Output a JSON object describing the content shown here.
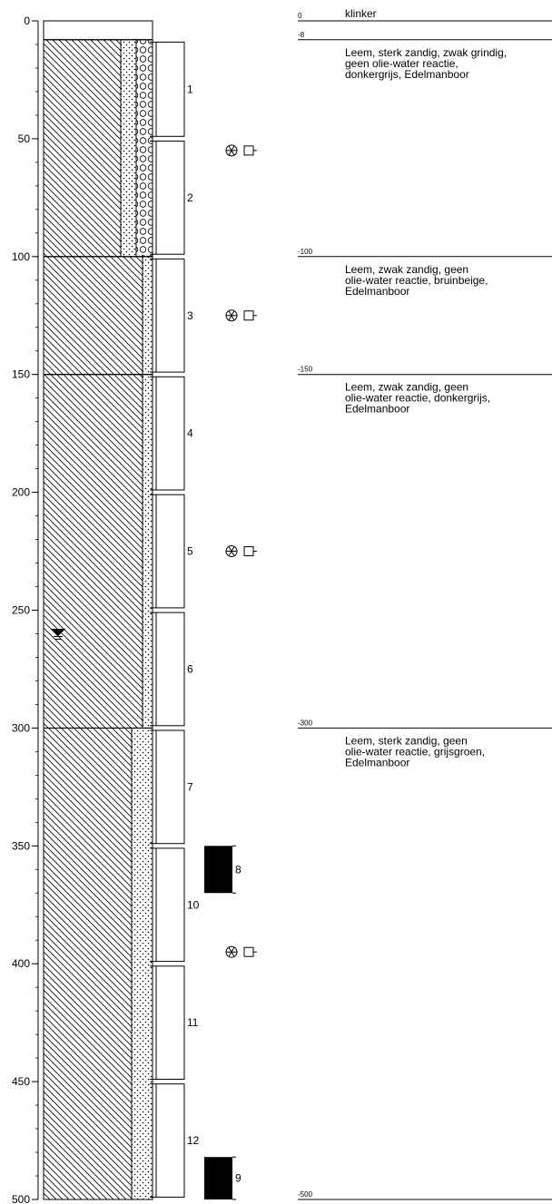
{
  "depth_axis": {
    "lim": [
      0,
      500
    ],
    "ticks": [
      0,
      50,
      100,
      150,
      200,
      250,
      300,
      350,
      400,
      450,
      500
    ],
    "minor_step": 10
  },
  "column_layers": [
    {
      "top": 0,
      "bottom": 8,
      "pattern": "none"
    },
    {
      "top": 8,
      "bottom": 100,
      "pattern": "gravel"
    },
    {
      "top": 100,
      "bottom": 150,
      "pattern": "loam-sand"
    },
    {
      "top": 150,
      "bottom": 300,
      "pattern": "loam-sand"
    },
    {
      "top": 300,
      "bottom": 500,
      "pattern": "loam-strong-sand"
    }
  ],
  "samples": [
    {
      "label": "1",
      "top": 9,
      "bottom": 49
    },
    {
      "label": "2",
      "top": 51,
      "bottom": 99
    },
    {
      "label": "3",
      "top": 101,
      "bottom": 149
    },
    {
      "label": "4",
      "top": 151,
      "bottom": 199
    },
    {
      "label": "5",
      "top": 201,
      "bottom": 249
    },
    {
      "label": "6",
      "top": 251,
      "bottom": 299
    },
    {
      "label": "7",
      "top": 301,
      "bottom": 349
    },
    {
      "label": "10",
      "top": 351,
      "bottom": 399
    },
    {
      "label": "11",
      "top": 401,
      "bottom": 449
    },
    {
      "label": "12",
      "top": 451,
      "bottom": 499
    }
  ],
  "cores": [
    {
      "label": "8",
      "top": 350,
      "bottom": 370
    },
    {
      "label": "9",
      "top": 482,
      "bottom": 500
    }
  ],
  "markers": [
    55,
    125,
    225,
    395
  ],
  "water_level": 260,
  "descriptions": [
    {
      "depth": 0,
      "text": [
        "klinker"
      ]
    },
    {
      "depth": -8,
      "text": [
        "Leem, sterk zandig, zwak grindig,",
        "geen olie-water reactie,",
        "donkergrijs, Edelmanboor"
      ]
    },
    {
      "depth": -100,
      "text": [
        "Leem, zwak zandig, geen",
        "olie-water reactie, bruinbeige,",
        "Edelmanboor"
      ]
    },
    {
      "depth": -150,
      "text": [
        "Leem, zwak zandig, geen",
        "olie-water reactie, donkergrijs,",
        "Edelmanboor"
      ]
    },
    {
      "depth": -300,
      "text": [
        "Leem, sterk zandig, geen",
        "olie-water reactie, grijsgroen,",
        "Edelmanboor"
      ]
    },
    {
      "depth": -500,
      "text": []
    }
  ]
}
